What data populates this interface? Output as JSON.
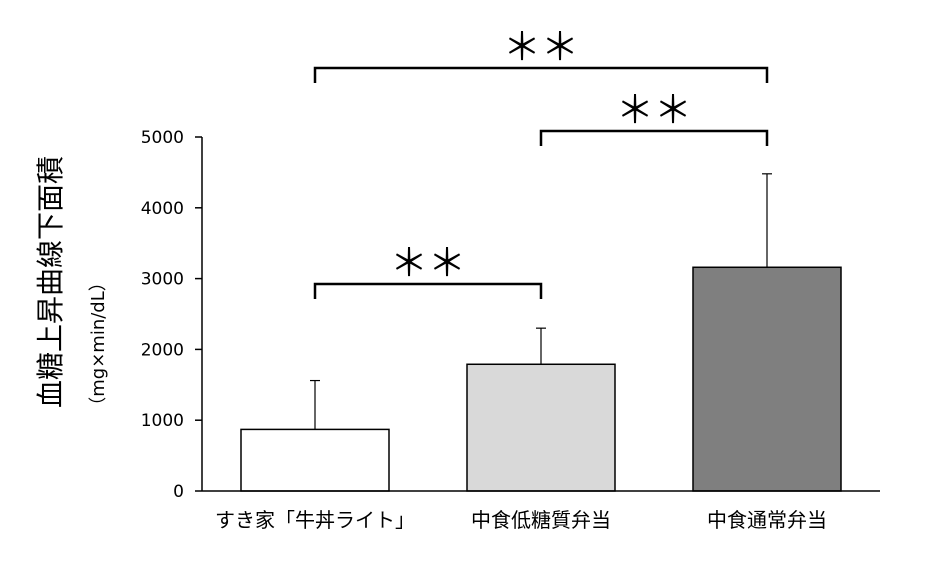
{
  "chart_data": {
    "type": "bar",
    "categories": [
      "すき家「牛丼ライト」",
      "中食低糖質弁当",
      "中食通常弁当"
    ],
    "values": [
      870,
      1790,
      3160
    ],
    "errors": [
      690,
      510,
      1320
    ],
    "bar_colors": [
      "#ffffff",
      "#d9d9d9",
      "#7f7f7f"
    ],
    "ylabel": "血糖上昇曲線下面積",
    "ylabel_unit": "（mg×min/dL）",
    "xlabel": "",
    "ylim": [
      0,
      5000
    ],
    "yticks": [
      0,
      1000,
      2000,
      3000,
      4000,
      5000
    ],
    "significance": [
      {
        "from": 0,
        "to": 1,
        "label": "＊＊"
      },
      {
        "from": 1,
        "to": 2,
        "label": "＊＊"
      },
      {
        "from": 0,
        "to": 2,
        "label": "＊＊"
      }
    ]
  }
}
